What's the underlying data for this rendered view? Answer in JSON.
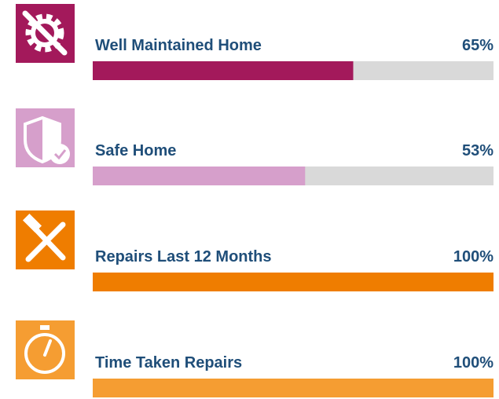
{
  "chart_data": {
    "type": "bar",
    "categories": [
      "Well Maintained Home",
      "Safe Home",
      "Repairs Last 12 Months",
      "Time Taken Repairs"
    ],
    "values": [
      65,
      53,
      100,
      100
    ],
    "value_labels": [
      "65%",
      "53%",
      "100%",
      "100%"
    ],
    "colors": [
      "#a3195b",
      "#d69fcb",
      "#ef7d00",
      "#f59d32"
    ],
    "track_color": "#d9d9d9",
    "xlim": [
      0,
      100
    ]
  }
}
